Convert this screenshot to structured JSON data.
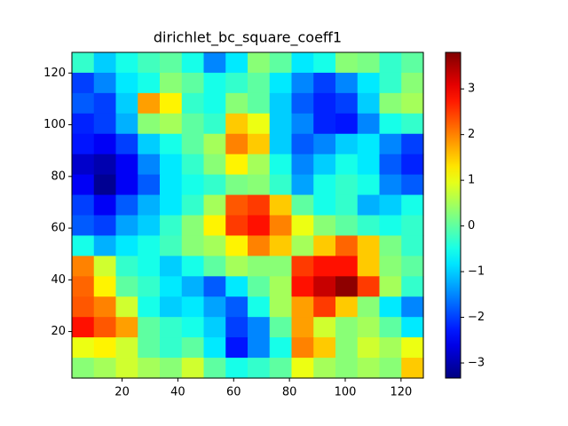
{
  "chart_data": {
    "type": "heatmap",
    "title": "dirichlet_bc_square_coeff1",
    "xlim": [
      2,
      128
    ],
    "ylim": [
      2,
      128
    ],
    "clim": [
      -3.33,
      3.8
    ],
    "xticks": [
      20,
      40,
      60,
      80,
      100,
      120
    ],
    "yticks": [
      20,
      40,
      60,
      80,
      100,
      120
    ],
    "cticks": [
      {
        "value": -3,
        "label": "−3"
      },
      {
        "value": -2,
        "label": "−2"
      },
      {
        "value": -1,
        "label": "−1"
      },
      0,
      1,
      2,
      3
    ],
    "colormap": "jet",
    "z": [
      [
        -0.3,
        -1.0,
        -0.5,
        -0.2,
        0,
        -0.5,
        -1.5,
        -0.8,
        0.3,
        0,
        -0.8,
        -0.5,
        0.3,
        0.2,
        -0.3,
        0
      ],
      [
        -2.0,
        -1.5,
        -0.8,
        -0.5,
        0.3,
        0,
        -0.5,
        -0.3,
        0,
        -0.8,
        -1.5,
        -2.0,
        -1.5,
        -0.8,
        -0.3,
        0.3
      ],
      [
        -1.8,
        -2.0,
        -1.0,
        1.8,
        1.2,
        -0.3,
        -0.5,
        0.3,
        0,
        -1.0,
        -1.8,
        -2.2,
        -2.0,
        -1.0,
        0.3,
        0.5
      ],
      [
        -2.2,
        -2.0,
        -1.2,
        0.3,
        0.5,
        0,
        -0.3,
        1.5,
        1.0,
        -1.0,
        -1.5,
        -2.2,
        -2.3,
        -1.5,
        -0.5,
        -0.3
      ],
      [
        -2.3,
        -2.5,
        -2.0,
        -1.0,
        -0.5,
        0,
        0.5,
        2.0,
        1.5,
        -1.0,
        -1.8,
        -1.5,
        -1.0,
        -0.8,
        -1.5,
        -2.0
      ],
      [
        -2.8,
        -3.0,
        -2.5,
        -1.5,
        -0.8,
        -0.3,
        0.3,
        1.2,
        0.5,
        -0.5,
        -1.5,
        -1.0,
        -0.5,
        -0.8,
        -1.8,
        -2.2
      ],
      [
        -2.5,
        -3.2,
        -2.5,
        -1.8,
        -0.8,
        -0.5,
        -0.3,
        0.2,
        0.3,
        -0.3,
        -1.3,
        -0.5,
        -0.3,
        -0.5,
        -1.5,
        -1.8
      ],
      [
        -2.0,
        -2.5,
        -1.8,
        -1.2,
        -0.8,
        -0.3,
        0.5,
        2.3,
        2.5,
        1.5,
        0,
        -0.5,
        -0.3,
        -1.2,
        -1.0,
        -0.5
      ],
      [
        -1.8,
        -2.0,
        -1.3,
        -1.0,
        -0.3,
        0.3,
        1.2,
        2.5,
        2.8,
        2.0,
        1.0,
        0.3,
        0,
        -0.3,
        -0.5,
        -0.3
      ],
      [
        -0.5,
        -1.2,
        -0.8,
        -0.5,
        -0.2,
        0.3,
        0.5,
        1.2,
        2.0,
        1.5,
        0.5,
        1.5,
        2.2,
        1.5,
        0.2,
        -0.3
      ],
      [
        2.0,
        0.8,
        -0.3,
        -0.5,
        -1.0,
        -0.5,
        0,
        0.5,
        0.3,
        0.3,
        2.5,
        2.8,
        2.8,
        1.5,
        0.3,
        0
      ],
      [
        2.2,
        1.2,
        0,
        -0.3,
        -0.8,
        -1.2,
        -1.8,
        -0.8,
        0,
        0.5,
        2.8,
        3.3,
        3.7,
        2.5,
        0.5,
        -0.3
      ],
      [
        2.3,
        2.0,
        0.8,
        -0.5,
        -1.0,
        -0.8,
        -1.3,
        -1.8,
        -0.5,
        0.5,
        1.8,
        2.5,
        1.5,
        0.3,
        -0.8,
        -1.5
      ],
      [
        2.8,
        2.3,
        1.8,
        0,
        -0.3,
        -0.5,
        -1.0,
        -2.0,
        -1.5,
        0,
        1.8,
        0.8,
        0.3,
        0.5,
        0,
        -0.8
      ],
      [
        1.0,
        1.2,
        0.8,
        0,
        -0.3,
        0,
        -0.8,
        -2.3,
        -1.5,
        -0.5,
        2.0,
        1.5,
        0.3,
        0.8,
        0.5,
        1.0
      ],
      [
        0.3,
        0.5,
        0.8,
        0.5,
        0.3,
        0.8,
        0,
        -0.5,
        -0.3,
        0,
        1.0,
        0.5,
        0.3,
        0.5,
        0.3,
        1.5
      ]
    ]
  }
}
